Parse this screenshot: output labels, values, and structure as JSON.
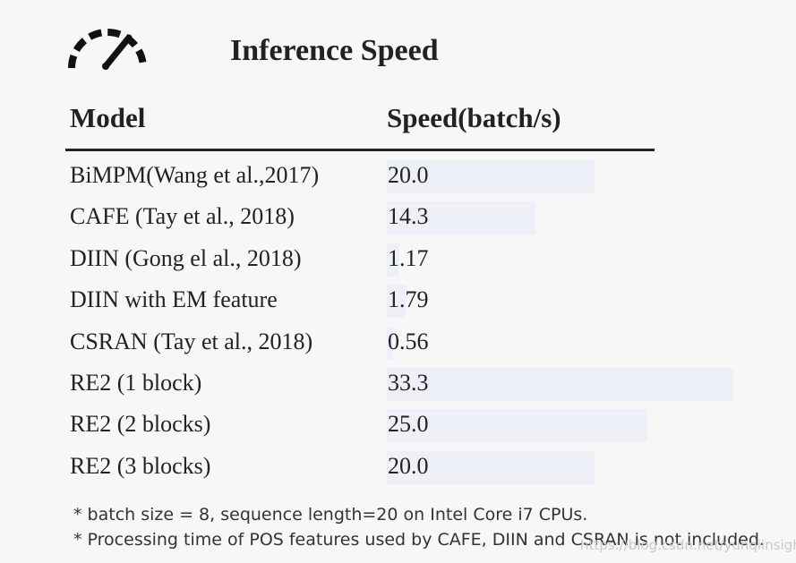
{
  "title": "Inference Speed",
  "icons": {
    "header": "speedometer-icon"
  },
  "colors": {
    "bar": "#eef0f8",
    "text": "#222222"
  },
  "table": {
    "headers": {
      "model": "Model",
      "speed": "Speed(batch/s)"
    }
  },
  "chart_data": {
    "type": "bar",
    "orientation": "horizontal",
    "title": "Inference Speed",
    "xlabel": "Speed(batch/s)",
    "ylabel": "Model",
    "categories": [
      "BiMPM(Wang et al.,2017)",
      "CAFE (Tay et al., 2018)",
      "DIIN (Gong el al., 2018)",
      "DIIN with EM feature",
      "CSRAN (Tay et al., 2018)",
      "RE2 (1 block)",
      "RE2 (2 blocks)",
      "RE2 (3 blocks)"
    ],
    "values": [
      20.0,
      14.3,
      1.17,
      1.79,
      0.56,
      33.3,
      25.0,
      20.0
    ],
    "value_labels": [
      "20.0",
      "14.3",
      "1.17",
      "1.79",
      "0.56",
      "33.3",
      "25.0",
      "20.0"
    ],
    "xlim": [
      0,
      33.3
    ],
    "grid": false
  },
  "footnotes": [
    "* batch size = 8, sequence length=20 on Intel Core i7 CPUs.",
    "* Processing time of POS features used by CAFE, DIIN and CSRAN is not included."
  ],
  "watermark": "https://blog.csdn.net/yunqiinsight"
}
